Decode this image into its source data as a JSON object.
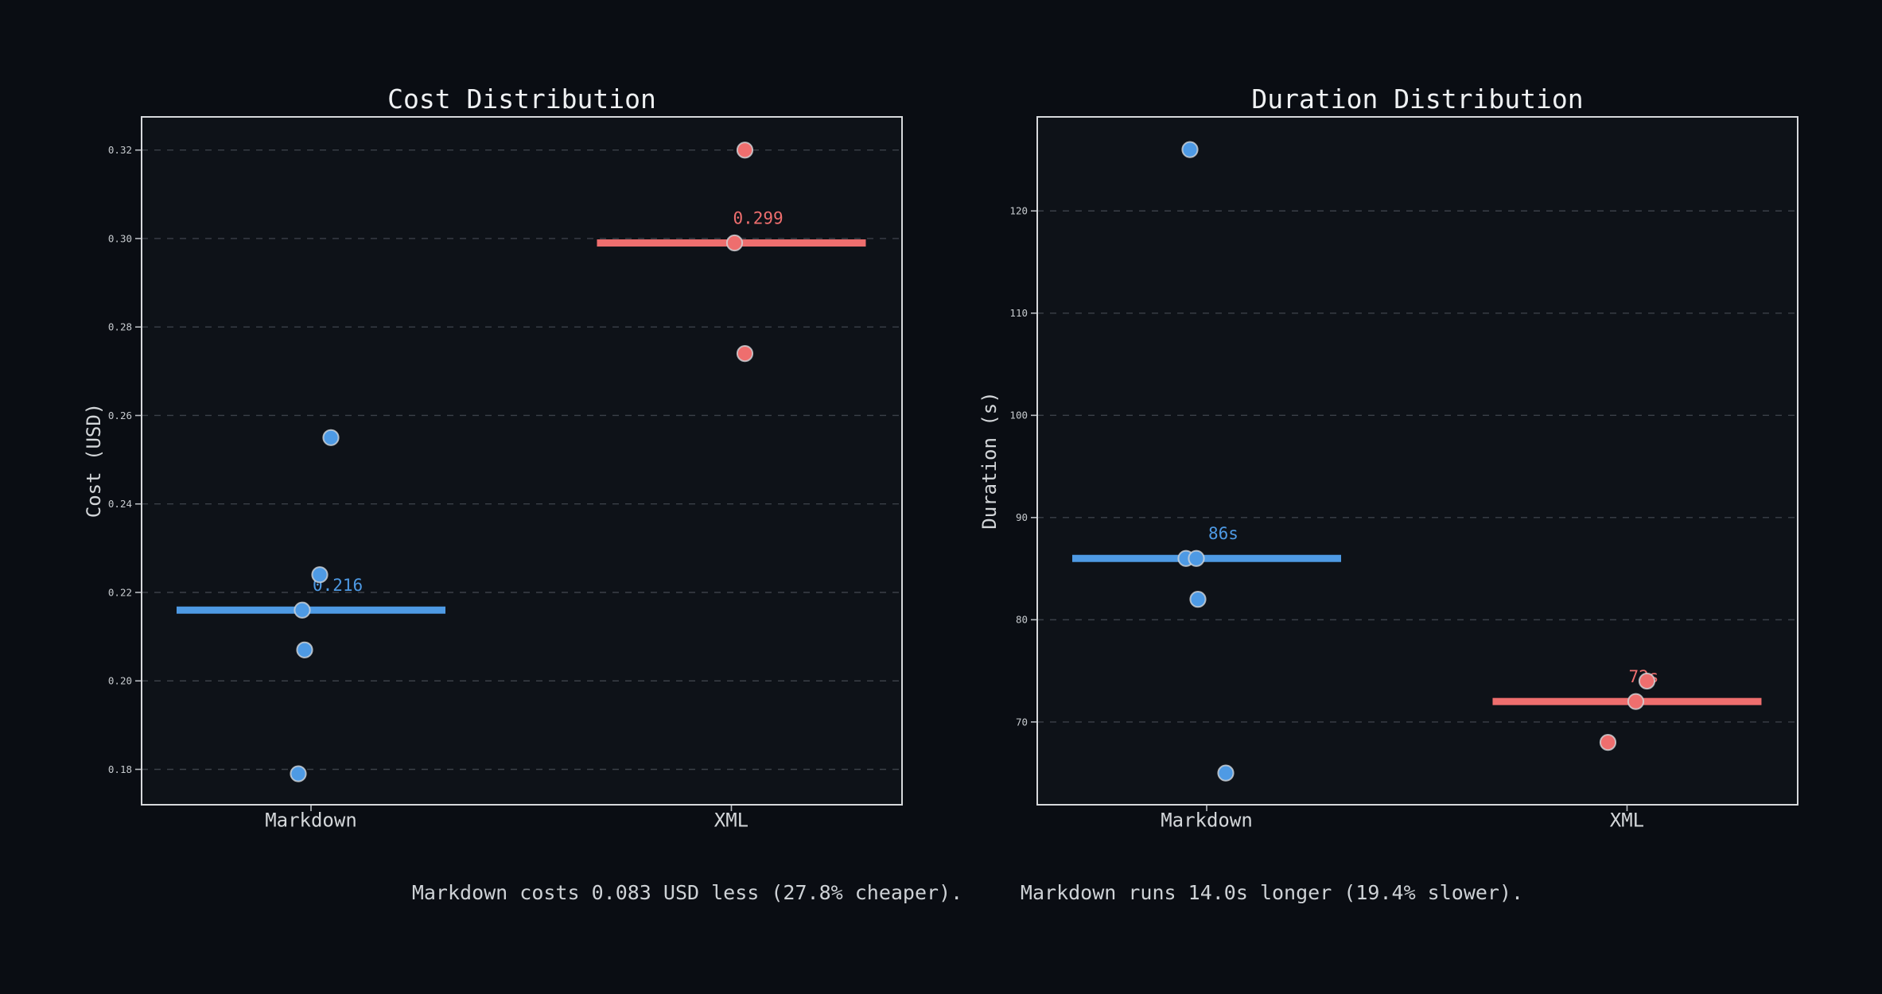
{
  "figure": {
    "background": "#0a0d13",
    "axes_background": "#0e1218",
    "grid_color": "#4a5058",
    "spine_color": "#d7d9dc",
    "tick_mark_color": "#b9bdc2",
    "tick_label_color": "#c6cace",
    "category_label_color": "#d4d7da",
    "title_color": "#eff1f3",
    "caption_color": "#ced2d6",
    "point_edge_color": "#d2d6da"
  },
  "series_colors": {
    "markdown": "#4e9ae4",
    "xml": "#ee6e6e"
  },
  "captions": [
    {
      "text": "Markdown costs 0.083 USD less (27.8% cheaper)."
    },
    {
      "text": "Markdown runs 14.0s longer (19.4% slower)."
    }
  ],
  "chart_data": [
    {
      "type": "scatter",
      "title": "Cost Distribution",
      "ylabel": "Cost (USD)",
      "categories": [
        "Markdown",
        "XML"
      ],
      "ylim": [
        0.172,
        0.3275
      ],
      "yticks": [
        0.18,
        0.2,
        0.22,
        0.24,
        0.26,
        0.28,
        0.3,
        0.32
      ],
      "ytick_labels": [
        "0.18",
        "0.20",
        "0.22",
        "0.24",
        "0.26",
        "0.28",
        "0.30",
        "0.32"
      ],
      "grid": true,
      "legend": false,
      "series": [
        {
          "name": "Markdown",
          "color": "#4e9ae4",
          "median": 0.216,
          "median_label": "0.216",
          "points": [
            {
              "y": 0.255,
              "dx": 25
            },
            {
              "y": 0.224,
              "dx": 11
            },
            {
              "y": 0.216,
              "dx": -11
            },
            {
              "y": 0.207,
              "dx": -8
            },
            {
              "y": 0.179,
              "dx": -16
            }
          ]
        },
        {
          "name": "XML",
          "color": "#ee6e6e",
          "median": 0.299,
          "median_label": "0.299",
          "points": [
            {
              "y": 0.32,
              "dx": 17
            },
            {
              "y": 0.299,
              "dx": 4
            },
            {
              "y": 0.274,
              "dx": 17
            }
          ]
        }
      ]
    },
    {
      "type": "scatter",
      "title": "Duration Distribution",
      "ylabel": "Duration (s)",
      "categories": [
        "Markdown",
        "XML"
      ],
      "ylim": [
        61.9,
        129.2
      ],
      "yticks": [
        70,
        80,
        90,
        100,
        110,
        120
      ],
      "ytick_labels": [
        "70",
        "80",
        "90",
        "100",
        "110",
        "120"
      ],
      "grid": true,
      "legend": false,
      "series": [
        {
          "name": "Markdown",
          "color": "#4e9ae4",
          "median": 86,
          "median_label": "86s",
          "points": [
            {
              "y": 126,
              "dx": -21
            },
            {
              "y": 86,
              "dx": -26
            },
            {
              "y": 86,
              "dx": -13
            },
            {
              "y": 82,
              "dx": -11
            },
            {
              "y": 65,
              "dx": 24
            }
          ]
        },
        {
          "name": "XML",
          "color": "#ee6e6e",
          "median": 72,
          "median_label": "72s",
          "points": [
            {
              "y": 74,
              "dx": 25
            },
            {
              "y": 72,
              "dx": 11
            },
            {
              "y": 68,
              "dx": -24
            }
          ]
        }
      ]
    }
  ]
}
